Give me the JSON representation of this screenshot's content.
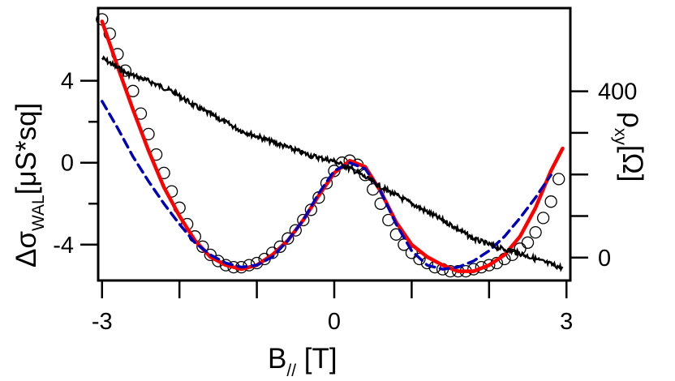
{
  "chart_data": {
    "type": "line",
    "title": "",
    "xlabel": "B",
    "xlabel_sub": "//",
    "xlabel_unit": " [T]",
    "ylabel_left": "Δσ",
    "ylabel_left_sub": "WAL",
    "ylabel_left_unit": "[μS*sq]",
    "ylabel_right": "ρ",
    "ylabel_right_sub": "xy",
    "ylabel_right_unit": "[Ω]",
    "xlim": [
      -3.05,
      3.05
    ],
    "ylim_left": [
      -5.75,
      7.55
    ],
    "ylim_right": [
      -55,
      600
    ],
    "x_ticks": [
      -3,
      0,
      3
    ],
    "x_tick_labels": [
      "-3",
      "0",
      "3"
    ],
    "x_minor_ticks": [
      -2,
      -1,
      1,
      2
    ],
    "y_left_ticks": [
      -4,
      0,
      4
    ],
    "y_left_tick_labels": [
      "-4",
      "0",
      "4"
    ],
    "y_left_minor_ticks": [
      -2,
      2
    ],
    "y_right_ticks": [
      0,
      400
    ],
    "y_right_tick_labels": [
      "0",
      "400"
    ],
    "y_right_minor_ticks": [
      100,
      200,
      300
    ],
    "grid": false,
    "legend": "none",
    "series": [
      {
        "kind": "scatter-open-circle",
        "axis": "left",
        "color": "#000000",
        "x": [
          -3.0,
          -2.9,
          -2.8,
          -2.7,
          -2.6,
          -2.5,
          -2.4,
          -2.3,
          -2.2,
          -2.1,
          -2.0,
          -1.9,
          -1.8,
          -1.7,
          -1.6,
          -1.5,
          -1.4,
          -1.3,
          -1.2,
          -1.1,
          -1.0,
          -0.9,
          -0.8,
          -0.7,
          -0.6,
          -0.5,
          -0.4,
          -0.3,
          -0.2,
          -0.1,
          0.0,
          0.1,
          0.2,
          0.3,
          0.4,
          0.5,
          0.6,
          0.7,
          0.8,
          0.9,
          1.0,
          1.1,
          1.2,
          1.3,
          1.4,
          1.5,
          1.6,
          1.7,
          1.8,
          1.9,
          2.0,
          2.1,
          2.2,
          2.3,
          2.4,
          2.5,
          2.6,
          2.7,
          2.8,
          2.9
        ],
        "y": [
          7.0,
          6.3,
          5.3,
          4.5,
          3.5,
          2.4,
          1.4,
          0.4,
          -0.5,
          -1.4,
          -2.2,
          -3.0,
          -3.6,
          -4.1,
          -4.5,
          -4.8,
          -5.0,
          -5.1,
          -5.1,
          -5.0,
          -4.9,
          -4.7,
          -4.4,
          -4.1,
          -3.7,
          -3.3,
          -2.8,
          -2.3,
          -1.7,
          -1.0,
          -0.4,
          0.0,
          0.1,
          -0.1,
          -0.6,
          -1.3,
          -2.0,
          -2.8,
          -3.5,
          -4.0,
          -4.4,
          -4.7,
          -4.9,
          -5.1,
          -5.2,
          -5.3,
          -5.3,
          -5.3,
          -5.2,
          -5.1,
          -5.0,
          -4.9,
          -4.7,
          -4.5,
          -4.2,
          -3.9,
          -3.4,
          -2.7,
          -1.9,
          -0.8
        ]
      },
      {
        "kind": "line",
        "name": "",
        "axis": "left",
        "color": "#ff0000",
        "style": "solid",
        "x": [
          -3.0,
          -2.8,
          -2.6,
          -2.4,
          -2.2,
          -2.0,
          -1.8,
          -1.6,
          -1.4,
          -1.2,
          -1.0,
          -0.8,
          -0.6,
          -0.4,
          -0.2,
          0.0,
          0.2,
          0.4,
          0.6,
          0.8,
          1.0,
          1.2,
          1.4,
          1.6,
          1.8,
          2.0,
          2.2,
          2.4,
          2.6,
          2.8,
          2.95
        ],
        "y": [
          6.9,
          4.7,
          2.6,
          0.6,
          -1.2,
          -2.6,
          -3.8,
          -4.6,
          -5.0,
          -5.2,
          -5.0,
          -4.5,
          -3.8,
          -2.8,
          -1.6,
          -0.5,
          0.1,
          -0.2,
          -1.4,
          -2.9,
          -4.0,
          -4.6,
          -5.0,
          -5.3,
          -5.3,
          -5.0,
          -4.5,
          -3.6,
          -2.2,
          -0.4,
          0.7
        ]
      },
      {
        "kind": "line",
        "name": "",
        "axis": "left",
        "color": "#0000bb",
        "style": "dashed",
        "x": [
          -3.0,
          -2.8,
          -2.6,
          -2.4,
          -2.2,
          -2.0,
          -1.8,
          -1.6,
          -1.4,
          -1.2,
          -1.0,
          -0.8,
          -0.6,
          -0.4,
          -0.2,
          0.0,
          0.2,
          0.4,
          0.6,
          0.8,
          1.0,
          1.2,
          1.4,
          1.6,
          1.8,
          2.0,
          2.2,
          2.4,
          2.6,
          2.8
        ],
        "y": [
          3.0,
          1.7,
          0.3,
          -0.9,
          -2.0,
          -3.0,
          -3.9,
          -4.5,
          -4.9,
          -5.1,
          -5.0,
          -4.6,
          -3.8,
          -2.8,
          -1.5,
          -0.4,
          0.0,
          -0.3,
          -1.4,
          -3.0,
          -4.3,
          -5.0,
          -5.2,
          -5.1,
          -4.8,
          -4.3,
          -3.6,
          -2.7,
          -1.7,
          -0.6
        ]
      },
      {
        "kind": "noisy-line",
        "name": "",
        "axis": "right",
        "color": "#000000",
        "x": [
          -3.0,
          -2.7,
          -2.4,
          -2.1,
          -1.8,
          -1.5,
          -1.2,
          -0.9,
          -0.6,
          -0.3,
          0.0,
          0.3,
          0.6,
          0.9,
          1.2,
          1.5,
          1.8,
          2.1,
          2.4,
          2.7,
          2.95
        ],
        "y": [
          480,
          445,
          425,
          400,
          365,
          335,
          305,
          285,
          265,
          245,
          232,
          205,
          170,
          140,
          110,
          80,
          45,
          25,
          10,
          -10,
          -25
        ]
      }
    ]
  }
}
